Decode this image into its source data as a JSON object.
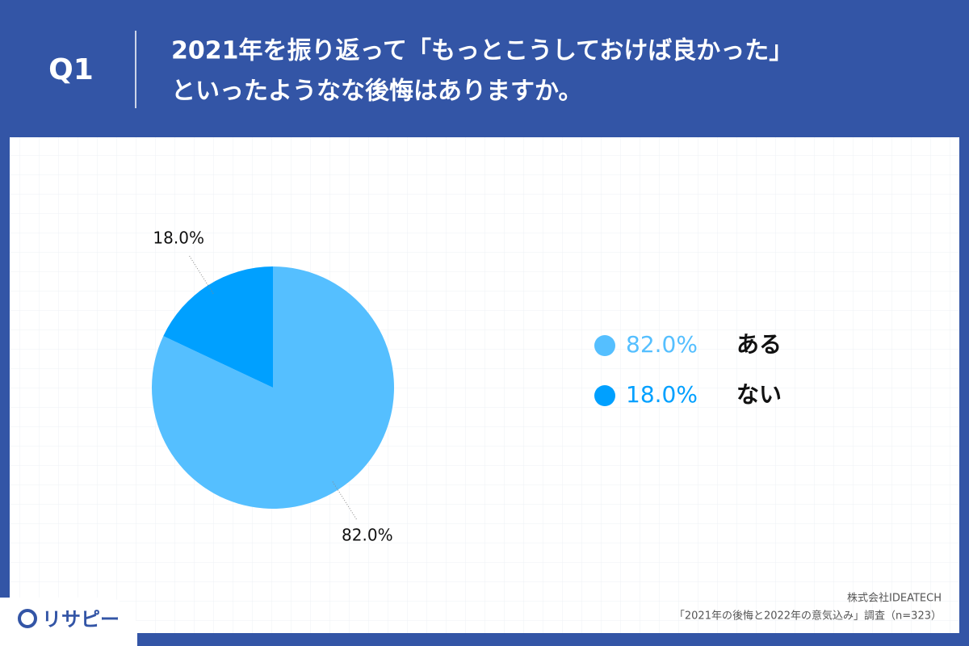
{
  "question": "Q1",
  "chart_data": {
    "type": "pie",
    "title": [
      "2021年を振り返って「もっとこうしておけば良かった」",
      "といったようなな後悔はありますか。"
    ],
    "categories": [
      "ある",
      "ない"
    ],
    "values": [
      82,
      18
    ],
    "value_labels": [
      "82.0%",
      "18.0%"
    ],
    "colors": [
      "#55bfff",
      "#00a0ff"
    ]
  },
  "source": [
    "株式会社IDEATECH",
    "「2021年の後悔と2022年の意気込み」調査（n=323）"
  ],
  "logo": "リサピー"
}
